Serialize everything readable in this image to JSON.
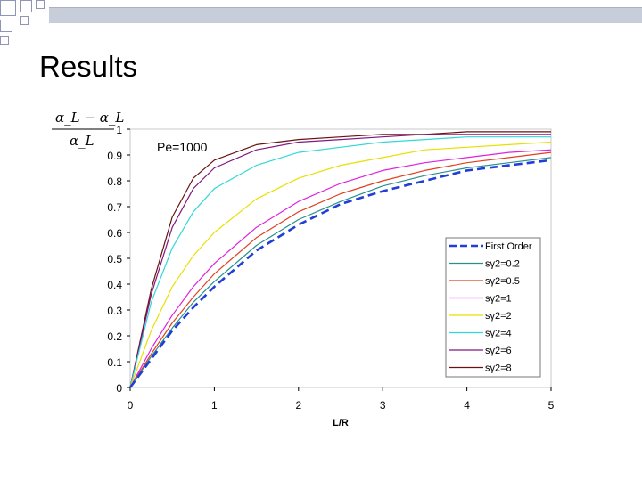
{
  "slide": {
    "title": "Results"
  },
  "chart_data": {
    "type": "line",
    "annotation": "Pe=1000",
    "ylabel_numerator": "α_L − α_L",
    "ylabel_denominator": "α_L",
    "xlabel": "L/R",
    "xlim": [
      0,
      5
    ],
    "ylim": [
      0,
      1
    ],
    "xticks": [
      "0",
      "1",
      "2",
      "3",
      "4",
      "5"
    ],
    "yticks": [
      "0",
      "0.1",
      "0.2",
      "0.3",
      "0.4",
      "0.5",
      "0.6",
      "0.7",
      "0.8",
      "0.9",
      "1"
    ],
    "x": [
      0,
      0.25,
      0.5,
      0.75,
      1,
      1.5,
      2,
      2.5,
      3,
      3.5,
      4,
      4.5,
      5
    ],
    "legend_position": "bottom-right",
    "series": [
      {
        "name": "First Order",
        "color": "#1f3fd8",
        "dashed": true,
        "values": [
          0,
          0.11,
          0.22,
          0.31,
          0.39,
          0.53,
          0.63,
          0.71,
          0.76,
          0.8,
          0.84,
          0.86,
          0.88
        ]
      },
      {
        "name": "sγ2=0.2",
        "color": "#2a8f8f",
        "dashed": false,
        "values": [
          0,
          0.12,
          0.23,
          0.33,
          0.41,
          0.55,
          0.65,
          0.72,
          0.78,
          0.82,
          0.85,
          0.87,
          0.89
        ]
      },
      {
        "name": "sγ2=0.5",
        "color": "#e04020",
        "dashed": false,
        "values": [
          0,
          0.13,
          0.25,
          0.35,
          0.44,
          0.58,
          0.68,
          0.75,
          0.8,
          0.84,
          0.87,
          0.89,
          0.91
        ]
      },
      {
        "name": "sγ2=1",
        "color": "#e020e0",
        "dashed": false,
        "values": [
          0,
          0.15,
          0.28,
          0.39,
          0.48,
          0.62,
          0.72,
          0.79,
          0.84,
          0.87,
          0.89,
          0.91,
          0.92
        ]
      },
      {
        "name": "sγ2=2",
        "color": "#e8e000",
        "dashed": false,
        "values": [
          0,
          0.22,
          0.39,
          0.51,
          0.6,
          0.73,
          0.81,
          0.86,
          0.89,
          0.92,
          0.93,
          0.94,
          0.95
        ]
      },
      {
        "name": "sγ2=4",
        "color": "#30d8d8",
        "dashed": false,
        "values": [
          0,
          0.33,
          0.54,
          0.68,
          0.77,
          0.86,
          0.91,
          0.93,
          0.95,
          0.96,
          0.97,
          0.97,
          0.97
        ]
      },
      {
        "name": "sγ2=6",
        "color": "#801880",
        "dashed": false,
        "values": [
          0,
          0.36,
          0.62,
          0.77,
          0.85,
          0.92,
          0.95,
          0.96,
          0.97,
          0.98,
          0.98,
          0.98,
          0.98
        ]
      },
      {
        "name": "sγ2=8",
        "color": "#6a1010",
        "dashed": false,
        "values": [
          0,
          0.38,
          0.66,
          0.81,
          0.88,
          0.94,
          0.96,
          0.97,
          0.98,
          0.98,
          0.99,
          0.99,
          0.99
        ]
      }
    ]
  }
}
